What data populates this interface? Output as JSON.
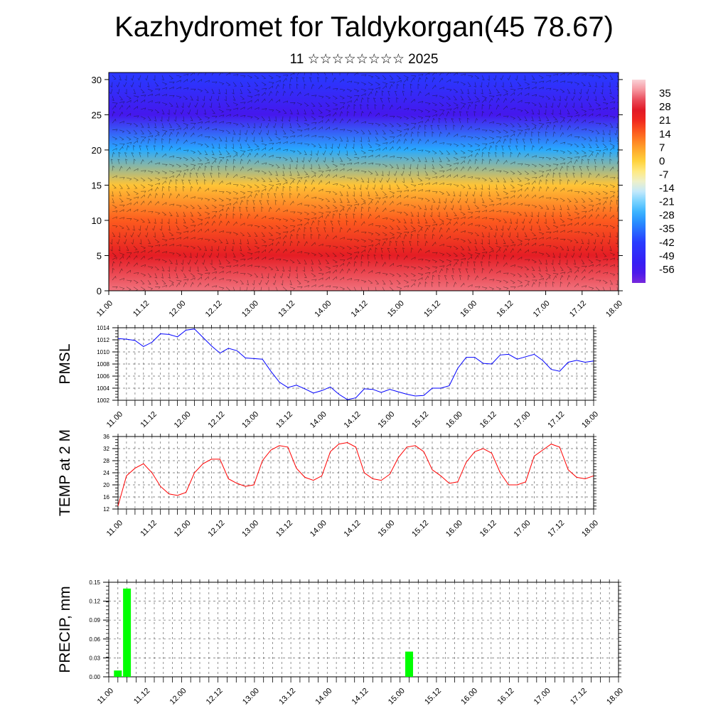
{
  "title": "Kazhydromet for Taldykorgan(45 78.67)",
  "subtitle": "11 ☆☆☆☆☆☆☆☆ 2025",
  "chart_data": [
    {
      "type": "heatmap",
      "ylim": [
        0,
        31
      ],
      "yticks": [
        "0",
        "5",
        "10",
        "15",
        "20",
        "25",
        "30"
      ],
      "xticks": [
        "11.00",
        "11.12",
        "12.00",
        "12.12",
        "13.00",
        "13.12",
        "14.00",
        "14.12",
        "15.00",
        "15.12",
        "16.00",
        "16.12",
        "17.00",
        "17.12",
        "18.00"
      ],
      "colorbar": {
        "labels": [
          "35",
          "28",
          "21",
          "14",
          "7",
          "0",
          "-7",
          "-14",
          "-21",
          "-28",
          "-35",
          "-42",
          "-49",
          "-56"
        ],
        "range": [
          -63,
          42
        ]
      },
      "layers": {
        "levels": [
          0,
          5,
          10,
          15,
          20,
          25,
          30
        ],
        "temperature": [
          34,
          25,
          15,
          2,
          -28,
          -57,
          -44
        ]
      },
      "overlay": "wind barbs"
    },
    {
      "type": "line",
      "ylabel": "PMSL",
      "ylim": [
        1002,
        1014
      ],
      "yticks": [
        "1002",
        "1004",
        "1006",
        "1008",
        "1010",
        "1012",
        "1014"
      ],
      "xticks": [
        "11.00",
        "11.12",
        "12.00",
        "12.12",
        "13.00",
        "13.12",
        "14.00",
        "14.12",
        "15.00",
        "15.12",
        "16.00",
        "16.12",
        "17.00",
        "17.12",
        "18.00"
      ],
      "x_step_hours": 3,
      "color": "#0000ff",
      "values": [
        1012.2,
        1012.1,
        1011.9,
        1010.9,
        1011.6,
        1013.0,
        1012.9,
        1012.5,
        1013.6,
        1013.8,
        1012.4,
        1011.0,
        1009.8,
        1010.6,
        1010.2,
        1009.0,
        1008.9,
        1008.8,
        1006.8,
        1005.0,
        1004.1,
        1004.5,
        1003.9,
        1003.2,
        1003.6,
        1004.2,
        1003.0,
        1002.1,
        1002.4,
        1003.9,
        1003.8,
        1003.3,
        1003.8,
        1003.4,
        1003.0,
        1002.7,
        1002.8,
        1004.0,
        1004.0,
        1004.4,
        1007.3,
        1009.1,
        1009.1,
        1008.1,
        1008.0,
        1009.5,
        1009.6,
        1008.8,
        1009.2,
        1009.6,
        1008.6,
        1007.1,
        1006.8,
        1008.3,
        1008.6,
        1008.3,
        1008.5
      ]
    },
    {
      "type": "line",
      "ylabel": "TEMP at 2 M",
      "ylim": [
        12,
        36
      ],
      "yticks": [
        "12",
        "16",
        "20",
        "24",
        "28",
        "32",
        "36"
      ],
      "xticks": [
        "11.00",
        "11.12",
        "12.00",
        "12.12",
        "13.00",
        "13.12",
        "14.00",
        "14.12",
        "15.00",
        "15.12",
        "16.00",
        "16.12",
        "17.00",
        "17.12",
        "18.00"
      ],
      "x_step_hours": 3,
      "color": "#ff0000",
      "values": [
        13.0,
        23.0,
        25.5,
        27.0,
        24.0,
        19.5,
        17.0,
        16.5,
        17.5,
        24.0,
        27.0,
        28.5,
        28.5,
        22.0,
        20.5,
        19.5,
        20.0,
        28.0,
        31.5,
        33.0,
        32.5,
        25.5,
        22.5,
        21.5,
        23.0,
        31.0,
        33.5,
        34.0,
        32.5,
        24.0,
        22.0,
        21.5,
        23.5,
        29.0,
        32.5,
        33.0,
        31.0,
        25.0,
        23.0,
        20.5,
        21.0,
        27.5,
        31.0,
        32.0,
        30.5,
        24.0,
        20.0,
        20.0,
        21.0,
        29.5,
        31.5,
        33.5,
        32.5,
        25.0,
        22.5,
        22.0,
        23.0
      ]
    },
    {
      "type": "bar",
      "ylabel": "PRECIP, mm",
      "ylim": [
        0,
        0.15
      ],
      "yticks": [
        "0.00",
        "0.03",
        "0.06",
        "0.09",
        "0.12",
        "0.15"
      ],
      "xticks": [
        "11.00",
        "11.12",
        "12.00",
        "12.12",
        "13.00",
        "13.12",
        "14.00",
        "14.12",
        "15.00",
        "15.12",
        "16.00",
        "16.12",
        "17.00",
        "17.12",
        "18.00"
      ],
      "x_step_hours": 3,
      "color": "#00ff00",
      "bars": [
        {
          "x": 3,
          "value": 0.01
        },
        {
          "x": 6,
          "value": 0.14
        },
        {
          "x": 99,
          "value": 0.04
        }
      ]
    }
  ]
}
